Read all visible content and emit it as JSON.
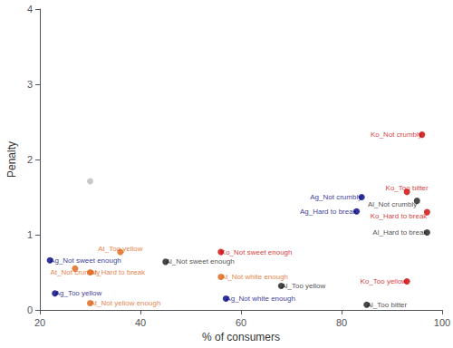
{
  "chart_data": {
    "type": "scatter",
    "xlabel": "% of consumers",
    "ylabel": "Penalty",
    "x": [
      96,
      93,
      97,
      93,
      56,
      84,
      83,
      57,
      22,
      23,
      95,
      97,
      45,
      68,
      85,
      36,
      30,
      56,
      30,
      27,
      30
    ],
    "values": [
      2.33,
      1.57,
      1.3,
      0.38,
      0.77,
      1.5,
      1.31,
      0.15,
      0.66,
      0.22,
      1.45,
      1.03,
      0.64,
      0.32,
      0.07,
      0.77,
      0.5,
      0.44,
      0.09,
      0.55,
      1.71
    ],
    "labels": [
      "Ko_Not crumbly",
      "Ko_Too bitter",
      "Ko_Hard to break",
      "Ko_Too yellow",
      "Ko_Not sweet enough",
      "Ag_Not crumbly",
      "Ag_Hard to break",
      "Ag_Not white enough",
      "Ag_Not sweet enough",
      "Ag_Too yellow",
      "Al_Not crumbly",
      "Al_Hard to break",
      "Al_Not sweet enough",
      "Al_Too yellow",
      "Al_Too bitter",
      "At_Too yellow",
      "At_Hard to break",
      "At_Not white enough",
      "At_Not yellow enough",
      "At_Not crumbly",
      null
    ],
    "colors": [
      "#cc0000",
      "#cc0000",
      "#cc0000",
      "#cc0000",
      "#cc0000",
      "#000080",
      "#000080",
      "#000080",
      "#000080",
      "#000080",
      "#1a1a1a",
      "#1a1a1a",
      "#1a1a1a",
      "#1a1a1a",
      "#1a1a1a",
      "#e06010",
      "#e06010",
      "#e06010",
      "#e06010",
      "#e06010",
      "#bbbbbb"
    ],
    "xlim": [
      20,
      100
    ],
    "ylim": [
      0,
      4
    ],
    "xticks": [
      20,
      40,
      60,
      80,
      100
    ],
    "yticks": [
      0,
      1,
      2,
      3,
      4
    ],
    "grid": false
  }
}
